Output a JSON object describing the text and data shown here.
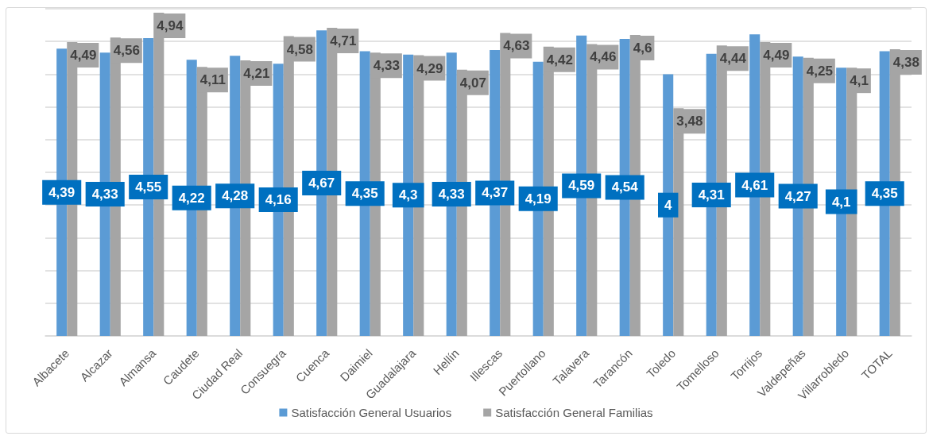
{
  "chart_data": {
    "type": "bar",
    "categories": [
      "Albacete",
      "Alcazar",
      "Almansa",
      "Caudete",
      "Ciudad Real",
      "Consuegra",
      "Cuenca",
      "Daimiel",
      "Guadalajara",
      "Hellín",
      "Illescas",
      "Puertollano",
      "Talavera",
      "Tarancón",
      "Toledo",
      "Tomelloso",
      "Torrijos",
      "Valdepeñas",
      "Villarrobledo",
      "TOTAL"
    ],
    "series": [
      {
        "name": "Satisfacción General Usuarios",
        "color": "#5b9bd5",
        "values": [
          4.39,
          4.33,
          4.55,
          4.22,
          4.28,
          4.16,
          4.67,
          4.35,
          4.3,
          4.33,
          4.37,
          4.19,
          4.59,
          4.54,
          4,
          4.31,
          4.61,
          4.27,
          4.1,
          4.35
        ],
        "value_labels": [
          "4,39",
          "4,33",
          "4,55",
          "4,22",
          "4,28",
          "4,16",
          "4,67",
          "4,35",
          "4,3",
          "4,33",
          "4,37",
          "4,19",
          "4,59",
          "4,54",
          "4",
          "4,31",
          "4,61",
          "4,27",
          "4,1",
          "4,35"
        ]
      },
      {
        "name": "Satisfacción General Familias",
        "color": "#a5a5a5",
        "values": [
          4.49,
          4.56,
          4.94,
          4.11,
          4.21,
          4.58,
          4.71,
          4.33,
          4.29,
          4.07,
          4.63,
          4.42,
          4.46,
          4.6,
          3.48,
          4.44,
          4.49,
          4.25,
          4.1,
          4.38
        ],
        "value_labels": [
          "4,49",
          "4,56",
          "4,94",
          "4,11",
          "4,21",
          "4,58",
          "4,71",
          "4,33",
          "4,29",
          "4,07",
          "4,63",
          "4,42",
          "4,46",
          "4,6",
          "3,48",
          "4,44",
          "4,49",
          "4,25",
          "4,1",
          "4,38"
        ]
      }
    ],
    "ylim": [
      0,
      5
    ],
    "yticks": [
      {
        "value": 0,
        "label": null
      },
      {
        "value": 0.5,
        "label": null
      },
      {
        "value": 1,
        "label": null
      },
      {
        "value": 1.5,
        "label": null
      },
      {
        "value": 2,
        "label": null
      },
      {
        "value": 2.5,
        "label": null
      },
      {
        "value": 3,
        "label": null
      },
      {
        "value": 3.5,
        "label": null
      },
      {
        "value": 4,
        "label": null
      },
      {
        "value": 4.5,
        "label": null
      },
      {
        "value": 5,
        "label": null
      }
    ],
    "tick_labels": "x",
    "grid": "y",
    "legend": "bottom"
  }
}
